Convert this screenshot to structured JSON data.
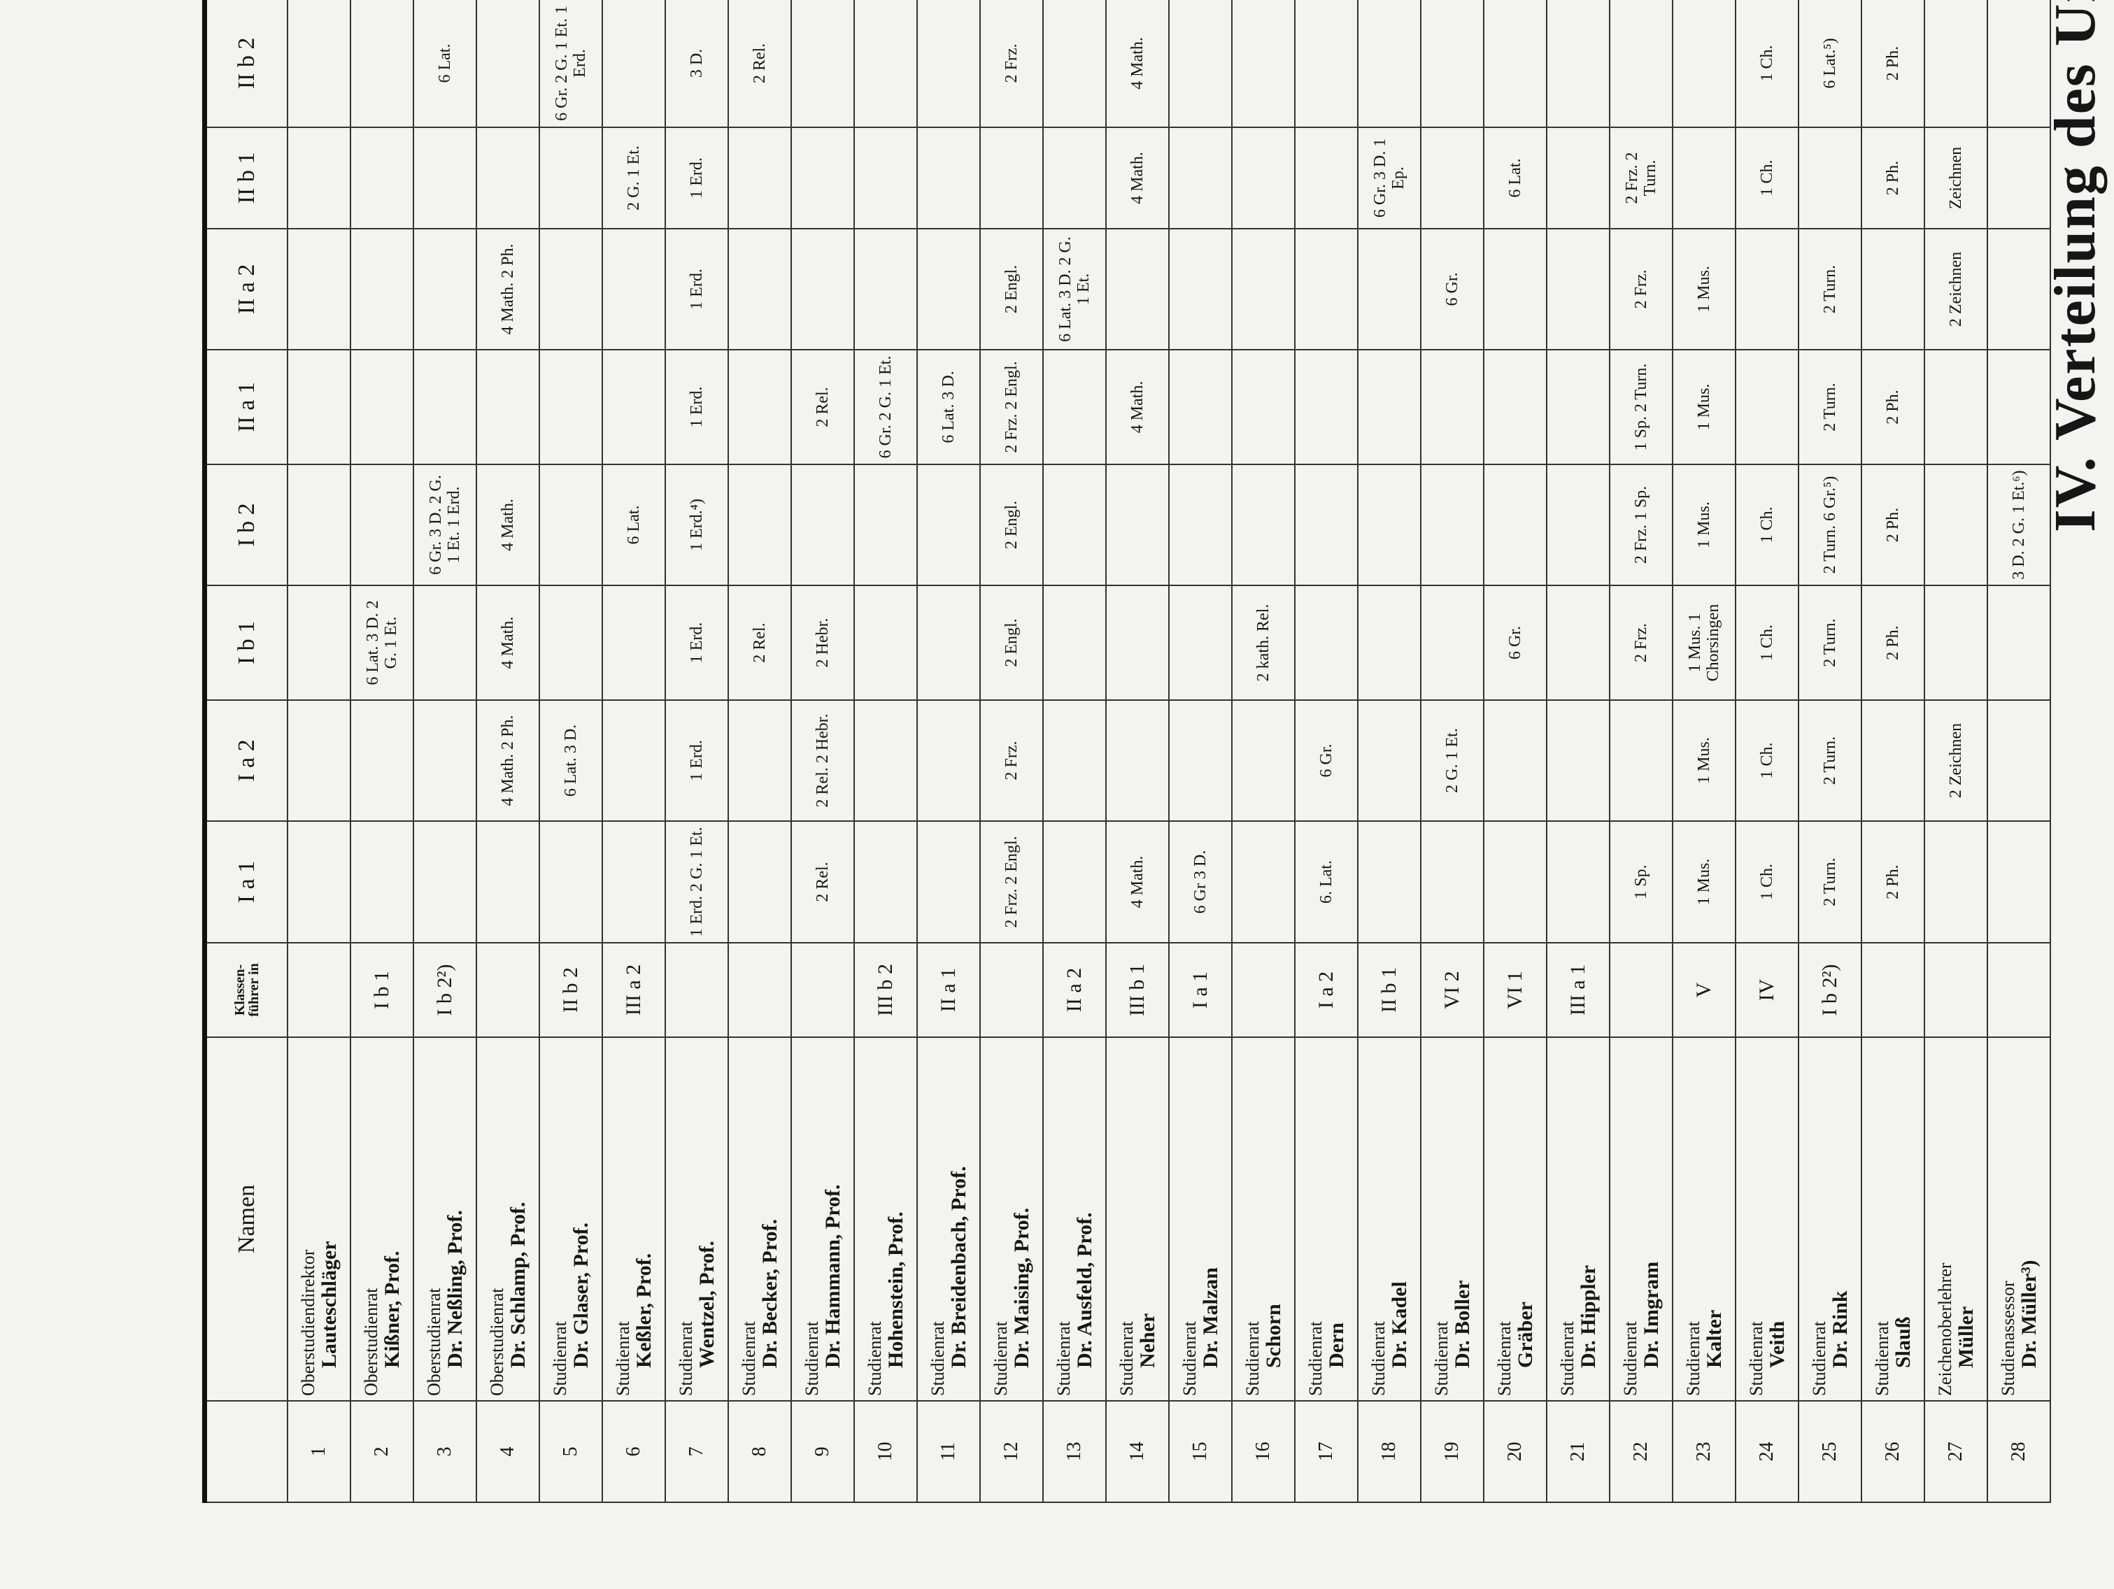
{
  "title": "IV. Verteilung des Unterri",
  "header": {
    "name": "Namen",
    "klassenfuehrer": "Klassen- führer in",
    "classes": [
      "I a 1",
      "I a 2",
      "I b 1",
      "I b 2",
      "II a 1",
      "II a 2",
      "II b 1",
      "II b 2"
    ]
  },
  "rows": [
    {
      "nr": 1,
      "rank": "Oberstudiendirektor",
      "name": "Lauteschläger",
      "klassenfuehrer": null,
      "cells": [
        null,
        null,
        null,
        null,
        null,
        null,
        null,
        null
      ]
    },
    {
      "nr": 2,
      "rank": "Oberstudienrat",
      "name": "Kißner, Prof.",
      "klassenfuehrer": "I b 1",
      "cells": [
        null,
        null,
        "6 Lat. 3 D. 2 G. 1 Et.",
        null,
        null,
        null,
        null,
        null
      ]
    },
    {
      "nr": 3,
      "rank": "Oberstudienrat",
      "name": "Dr. Neßling, Prof.",
      "klassenfuehrer": "I b 2²)",
      "cells": [
        null,
        null,
        null,
        "6 Gr. 3 D. 2 G. 1 Et. 1 Erd.",
        null,
        null,
        null,
        "6 Lat."
      ]
    },
    {
      "nr": 4,
      "rank": "Oberstudienrat",
      "name": "Dr. Schlamp, Prof.",
      "klassenfuehrer": null,
      "cells": [
        null,
        "4 Math. 2 Ph.",
        "4 Math.",
        "4 Math.",
        null,
        "4 Math. 2 Ph.",
        null,
        null
      ]
    },
    {
      "nr": 5,
      "rank": "Studienrat",
      "name": "Dr. Glaser, Prof.",
      "klassenfuehrer": "II b 2",
      "cells": [
        null,
        "6 Lat. 3 D.",
        null,
        null,
        null,
        null,
        null,
        "6 Gr. 2 G. 1 Et. 1 Erd."
      ]
    },
    {
      "nr": 6,
      "rank": "Studienrat",
      "name": "Keßler, Prof.",
      "klassenfuehrer": "III a 2",
      "cells": [
        null,
        null,
        null,
        "6 Lat.",
        null,
        null,
        "2 G. 1 Et.",
        null
      ]
    },
    {
      "nr": 7,
      "rank": "Studienrat",
      "name": "Wentzel, Prof.",
      "klassenfuehrer": null,
      "cells": [
        "1 Erd. 2 G. 1 Et.",
        "1 Erd.",
        "1 Erd.",
        "1 Erd.⁴)",
        "1 Erd.",
        "1 Erd.",
        "1 Erd.",
        "3 D."
      ]
    },
    {
      "nr": 8,
      "rank": "Studienrat",
      "name": "Dr. Becker, Prof.",
      "klassenfuehrer": null,
      "cells": [
        null,
        null,
        "2 Rel.",
        null,
        null,
        null,
        null,
        "2 Rel."
      ]
    },
    {
      "nr": 9,
      "rank": "Studienrat",
      "name": "Dr. Hammann, Prof.",
      "klassenfuehrer": null,
      "cells": [
        "2 Rel.",
        "2 Rel. 2 Hebr.",
        "2 Hebr.",
        null,
        "2 Rel.",
        null,
        null,
        null
      ]
    },
    {
      "nr": 10,
      "rank": "Studienrat",
      "name": "Hohenstein, Prof.",
      "klassenfuehrer": "III b 2",
      "cells": [
        null,
        null,
        null,
        null,
        "6 Gr. 2 G. 1 Et.",
        null,
        null,
        null
      ]
    },
    {
      "nr": 11,
      "rank": "Studienrat",
      "name": "Dr. Breidenbach, Prof.",
      "klassenfuehrer": "II a 1",
      "cells": [
        null,
        null,
        null,
        null,
        "6 Lat. 3 D.",
        null,
        null,
        null
      ]
    },
    {
      "nr": 12,
      "rank": "Studienrat",
      "name": "Dr. Maising, Prof.",
      "klassenfuehrer": null,
      "cells": [
        "2 Frz. 2 Engl.",
        "2 Frz.",
        "2 Engl.",
        "2 Engl.",
        "2 Frz. 2 Engl.",
        "2 Engl.",
        null,
        "2 Frz."
      ]
    },
    {
      "nr": 13,
      "rank": "Studienrat",
      "name": "Dr. Ausfeld, Prof.",
      "klassenfuehrer": "II a 2",
      "cells": [
        null,
        null,
        null,
        null,
        null,
        "6 Lat. 3 D. 2 G. 1 Et.",
        null,
        null
      ]
    },
    {
      "nr": 14,
      "rank": "Studienrat",
      "name": "Neher",
      "klassenfuehrer": "III b 1",
      "cells": [
        "4 Math.",
        null,
        null,
        null,
        "4 Math.",
        null,
        "4 Math.",
        "4 Math."
      ]
    },
    {
      "nr": 15,
      "rank": "Studienrat",
      "name": "Dr. Malzan",
      "klassenfuehrer": "I a 1",
      "cells": [
        "6 Gr 3 D.",
        null,
        null,
        null,
        null,
        null,
        null,
        null
      ]
    },
    {
      "nr": 16,
      "rank": "Studienrat",
      "name": "Schorn",
      "klassenfuehrer": null,
      "cells": [
        null,
        null,
        "2 kath. Rel.",
        null,
        null,
        null,
        null,
        null
      ]
    },
    {
      "nr": 17,
      "rank": "Studienrat",
      "name": "Dern",
      "klassenfuehrer": "I a 2",
      "cells": [
        "6. Lat.",
        "6 Gr.",
        null,
        null,
        null,
        null,
        null,
        null
      ]
    },
    {
      "nr": 18,
      "rank": "Studienrat",
      "name": "Dr. Kadel",
      "klassenfuehrer": "II b 1",
      "cells": [
        null,
        null,
        null,
        null,
        null,
        null,
        "6 Gr. 3 D. 1 Ep.",
        null
      ]
    },
    {
      "nr": 19,
      "rank": "Studienrat",
      "name": "Dr. Boller",
      "klassenfuehrer": "VI 2",
      "cells": [
        null,
        "2 G. 1 Et.",
        null,
        null,
        null,
        "6 Gr.",
        null,
        null
      ]
    },
    {
      "nr": 20,
      "rank": "Studienrat",
      "name": "Gräber",
      "klassenfuehrer": "VI 1",
      "cells": [
        null,
        null,
        "6 Gr.",
        null,
        null,
        null,
        "6 Lat.",
        null
      ]
    },
    {
      "nr": 21,
      "rank": "Studienrat",
      "name": "Dr. Hippler",
      "klassenfuehrer": "III a 1",
      "cells": [
        null,
        null,
        null,
        null,
        null,
        null,
        null,
        null
      ]
    },
    {
      "nr": 22,
      "rank": "Studienrat",
      "name": "Dr. Imgram",
      "klassenfuehrer": null,
      "cells": [
        "1 Sp.",
        null,
        "2 Frz.",
        "2 Frz. 1 Sp.",
        "1 Sp. 2 Turn.",
        "2 Frz.",
        "2 Frz. 2 Turn.",
        null
      ]
    },
    {
      "nr": 23,
      "rank": "Studienrat",
      "name": "Kalter",
      "klassenfuehrer": "V",
      "cells": [
        "1 Mus.",
        "1 Mus.",
        "1 Mus. 1 Chorsingen",
        "1 Mus.",
        "1 Mus.",
        "1 Mus.",
        null,
        null
      ]
    },
    {
      "nr": 24,
      "rank": "Studienrat",
      "name": "Veith",
      "klassenfuehrer": "IV",
      "cells": [
        "1 Ch.",
        "1 Ch.",
        "1 Ch.",
        "1 Ch.",
        null,
        null,
        "1 Ch.",
        "1 Ch."
      ]
    },
    {
      "nr": 25,
      "rank": "Studienrat",
      "name": "Dr. Rink",
      "klassenfuehrer": "I b 2²)",
      "cells": [
        "2 Turn.",
        "2 Turn.",
        "2 Turn.",
        "2 Turn. 6 Gr.⁵)",
        "2 Turn.",
        "2 Turn.",
        null,
        "6 Lat.⁵)"
      ]
    },
    {
      "nr": 26,
      "rank": "Studienrat",
      "name": "Slauß",
      "klassenfuehrer": null,
      "cells": [
        "2 Ph.",
        null,
        "2 Ph.",
        "2 Ph.",
        "2 Ph.",
        null,
        "2 Ph.",
        "2 Ph."
      ]
    },
    {
      "nr": 27,
      "rank": "Zeichenoberlehrer",
      "name": "Müller",
      "klassenfuehrer": null,
      "cells": [
        null,
        "2 Zeichnen",
        null,
        null,
        null,
        "2 Zeichnen",
        "Zeichnen",
        null
      ]
    },
    {
      "nr": 28,
      "rank": "Studienassessor",
      "name": "Dr. Müller³)",
      "klassenfuehrer": null,
      "cells": [
        null,
        null,
        null,
        "3 D. 2 G. 1 Et.⁶)",
        null,
        null,
        null,
        null
      ]
    }
  ]
}
